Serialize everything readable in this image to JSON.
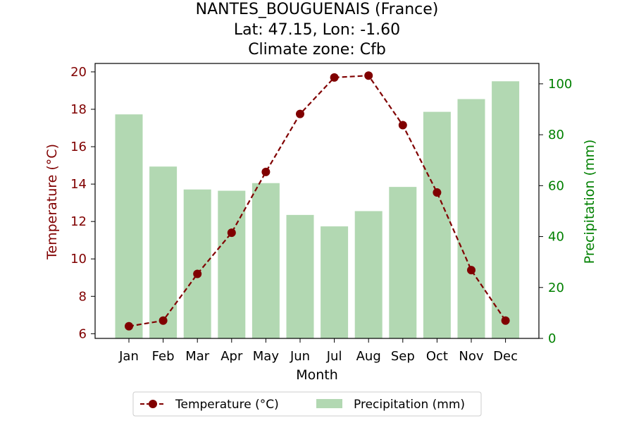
{
  "chart_data": {
    "type": "bar+line",
    "title_lines": [
      "NANTES_BOUGUENAIS (France)",
      "Lat: 47.15, Lon: -1.60",
      "Climate zone: Cfb"
    ],
    "xlabel": "Month",
    "ylabel_left": "Temperature (°C)",
    "ylabel_right": "Precipitation (mm)",
    "categories": [
      "Jan",
      "Feb",
      "Mar",
      "Apr",
      "May",
      "Jun",
      "Jul",
      "Aug",
      "Sep",
      "Oct",
      "Nov",
      "Dec"
    ],
    "temperature": {
      "name": "Temperature (°C)",
      "values": [
        6.4,
        6.7,
        9.2,
        11.4,
        14.65,
        17.75,
        19.7,
        19.8,
        17.15,
        13.55,
        9.4,
        6.7
      ],
      "color": "#800000",
      "ylim": [
        5.75,
        20.45
      ],
      "ticks": [
        6,
        8,
        10,
        12,
        14,
        16,
        18,
        20
      ]
    },
    "precipitation": {
      "name": "Precipitation (mm)",
      "values": [
        88,
        67.5,
        58.5,
        58,
        61,
        48.5,
        44,
        50,
        59.5,
        89,
        94,
        101
      ],
      "color": "#b2d8b2",
      "ylim": [
        0,
        108
      ],
      "ticks": [
        0,
        20,
        40,
        60,
        80,
        100
      ]
    },
    "legend_position": "bottom-center",
    "axis_colors": {
      "left": "#800000",
      "right": "#008000"
    }
  }
}
